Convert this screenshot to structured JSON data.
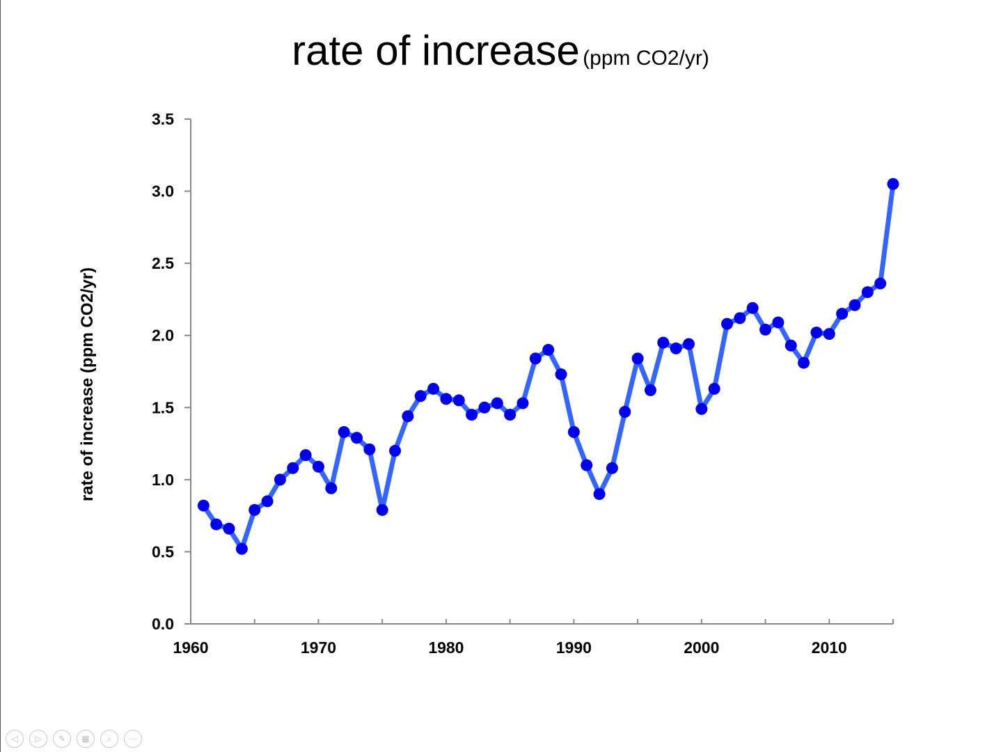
{
  "title": {
    "main": "rate of increase",
    "sub": "(ppm CO2/yr)"
  },
  "chart_data": {
    "type": "line",
    "title": "rate of increase (ppm CO2/yr)",
    "xlabel": "",
    "ylabel": "rate of increase (ppm CO2/yr)",
    "xlim": [
      1960,
      2015
    ],
    "ylim": [
      0,
      3.5
    ],
    "x_ticks": [
      1960,
      1970,
      1980,
      1990,
      2000,
      2010
    ],
    "y_ticks": [
      "0.0",
      "0.5",
      "1.0",
      "1.5",
      "2.0",
      "2.5",
      "3.0",
      "3.5"
    ],
    "series": [
      {
        "name": "rate of increase",
        "color": "#3366ff",
        "marker_color": "#0000ee",
        "x": [
          1961,
          1962,
          1963,
          1964,
          1965,
          1966,
          1967,
          1968,
          1969,
          1970,
          1971,
          1972,
          1973,
          1974,
          1975,
          1976,
          1977,
          1978,
          1979,
          1980,
          1981,
          1982,
          1983,
          1984,
          1985,
          1986,
          1987,
          1988,
          1989,
          1990,
          1991,
          1992,
          1993,
          1994,
          1995,
          1996,
          1997,
          1998,
          1999,
          2000,
          2001,
          2002,
          2003,
          2004,
          2005,
          2006,
          2007,
          2008,
          2009,
          2010,
          2011,
          2012,
          2013,
          2014,
          2015
        ],
        "y": [
          0.82,
          0.69,
          0.66,
          0.52,
          0.79,
          0.85,
          1.0,
          1.08,
          1.17,
          1.09,
          0.94,
          1.33,
          1.29,
          1.21,
          0.79,
          1.2,
          1.44,
          1.58,
          1.63,
          1.56,
          1.55,
          1.45,
          1.5,
          1.53,
          1.45,
          1.53,
          1.84,
          1.9,
          1.73,
          1.33,
          1.1,
          0.9,
          1.08,
          1.47,
          1.84,
          1.62,
          1.95,
          1.91,
          1.94,
          1.49,
          1.63,
          2.08,
          2.12,
          2.19,
          2.04,
          2.09,
          1.93,
          1.81,
          2.02,
          2.01,
          2.15,
          2.21,
          2.3,
          2.36,
          3.05
        ]
      }
    ]
  },
  "controls": [
    {
      "name": "prev-slide-icon",
      "glyph": "◁"
    },
    {
      "name": "next-slide-icon",
      "glyph": "▷"
    },
    {
      "name": "pen-icon",
      "glyph": "✎"
    },
    {
      "name": "slides-grid-icon",
      "glyph": "▦"
    },
    {
      "name": "zoom-icon",
      "glyph": "⌕"
    },
    {
      "name": "more-options-icon",
      "glyph": "⋯"
    }
  ]
}
